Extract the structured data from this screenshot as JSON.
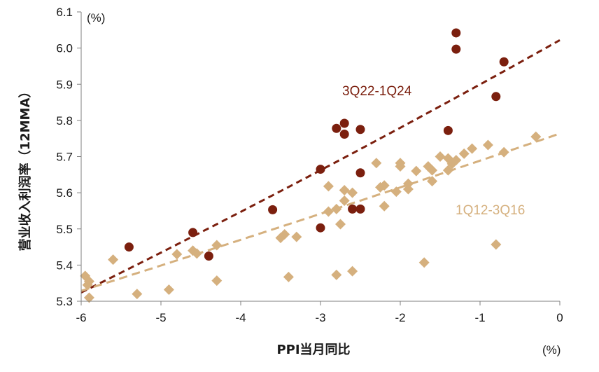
{
  "chart_data": {
    "type": "scatter",
    "title": "",
    "xlabel": "PPI当月同比",
    "ylabel": "营业收入利润率（12MMA）",
    "x_unit": "(%)",
    "y_unit": "(%)",
    "xlim": [
      -6,
      0
    ],
    "ylim": [
      5.3,
      6.1
    ],
    "x_ticks": [
      "-6",
      "-5",
      "-4",
      "-3",
      "-2",
      "-1",
      "0"
    ],
    "y_ticks": [
      "5.3",
      "5.4",
      "5.5",
      "5.6",
      "5.7",
      "5.8",
      "5.9",
      "6.0",
      "6.1"
    ],
    "grid": false,
    "legend": "none",
    "series": [
      {
        "name": "3Q22-1Q24",
        "label": "3Q22-1Q24",
        "color": "#7b1f0e",
        "marker": "circle",
        "points": [
          [
            -5.4,
            5.45
          ],
          [
            -4.6,
            5.49
          ],
          [
            -4.4,
            5.425
          ],
          [
            -3.6,
            5.553
          ],
          [
            -3.0,
            5.665
          ],
          [
            -3.0,
            5.503
          ],
          [
            -2.8,
            5.778
          ],
          [
            -2.7,
            5.792
          ],
          [
            -2.7,
            5.762
          ],
          [
            -2.6,
            5.555
          ],
          [
            -2.5,
            5.775
          ],
          [
            -2.5,
            5.655
          ],
          [
            -2.5,
            5.555
          ],
          [
            -1.4,
            5.772
          ],
          [
            -1.3,
            6.042
          ],
          [
            -1.3,
            5.997
          ],
          [
            -0.8,
            5.866
          ],
          [
            -0.7,
            5.962
          ]
        ],
        "trend": {
          "type": "exponential",
          "points": [
            [
              -6.0,
              5.39
            ],
            [
              -4.5,
              5.46
            ],
            [
              -3.0,
              5.59
            ],
            [
              -1.5,
              5.8
            ],
            [
              0.0,
              6.1
            ]
          ]
        }
      },
      {
        "name": "1Q12-3Q16",
        "label": "1Q12-3Q16",
        "color": "#d5b07e",
        "marker": "diamond",
        "points": [
          [
            -5.95,
            5.37
          ],
          [
            -5.92,
            5.345
          ],
          [
            -5.9,
            5.355
          ],
          [
            -5.9,
            5.31
          ],
          [
            -5.6,
            5.415
          ],
          [
            -5.3,
            5.32
          ],
          [
            -4.9,
            5.332
          ],
          [
            -4.8,
            5.43
          ],
          [
            -4.6,
            5.44
          ],
          [
            -4.55,
            5.432
          ],
          [
            -4.3,
            5.455
          ],
          [
            -4.3,
            5.357
          ],
          [
            -3.5,
            5.475
          ],
          [
            -3.45,
            5.485
          ],
          [
            -3.4,
            5.367
          ],
          [
            -3.3,
            5.478
          ],
          [
            -2.9,
            5.618
          ],
          [
            -2.9,
            5.548
          ],
          [
            -2.8,
            5.555
          ],
          [
            -2.8,
            5.373
          ],
          [
            -2.75,
            5.513
          ],
          [
            -2.7,
            5.607
          ],
          [
            -2.7,
            5.578
          ],
          [
            -2.6,
            5.6
          ],
          [
            -2.6,
            5.383
          ],
          [
            -2.3,
            5.682
          ],
          [
            -2.25,
            5.615
          ],
          [
            -2.2,
            5.62
          ],
          [
            -2.2,
            5.563
          ],
          [
            -2.05,
            5.603
          ],
          [
            -2.0,
            5.682
          ],
          [
            -2.0,
            5.673
          ],
          [
            -1.9,
            5.625
          ],
          [
            -1.9,
            5.61
          ],
          [
            -1.8,
            5.66
          ],
          [
            -1.7,
            5.407
          ],
          [
            -1.65,
            5.673
          ],
          [
            -1.6,
            5.662
          ],
          [
            -1.6,
            5.632
          ],
          [
            -1.5,
            5.7
          ],
          [
            -1.4,
            5.695
          ],
          [
            -1.4,
            5.662
          ],
          [
            -1.35,
            5.68
          ],
          [
            -1.3,
            5.69
          ],
          [
            -1.2,
            5.708
          ],
          [
            -1.1,
            5.722
          ],
          [
            -0.9,
            5.732
          ],
          [
            -0.8,
            5.457
          ],
          [
            -0.7,
            5.712
          ],
          [
            -0.3,
            5.755
          ]
        ],
        "trend": {
          "type": "exponential",
          "points": [
            [
              -6.0,
              5.345
            ],
            [
              -4.5,
              5.43
            ],
            [
              -3.0,
              5.52
            ],
            [
              -1.5,
              5.64
            ],
            [
              0.0,
              5.785
            ]
          ]
        }
      }
    ]
  }
}
